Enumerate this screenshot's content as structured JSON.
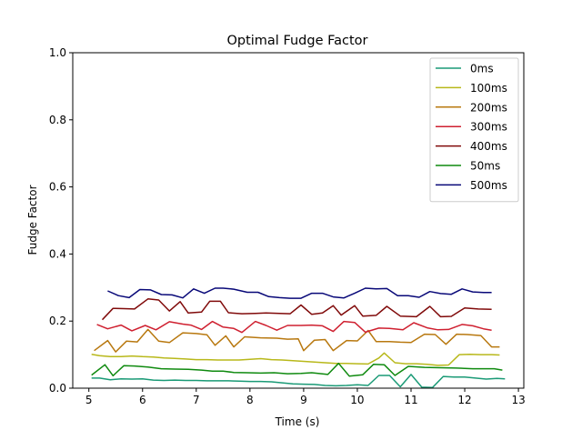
{
  "chart_data": {
    "type": "line",
    "title": "Optimal Fudge Factor",
    "xlabel": "Time (s)",
    "ylabel": "Fudge Factor",
    "xlim": [
      4.7,
      13.1
    ],
    "ylim": [
      0.0,
      1.0
    ],
    "xticks": [
      5,
      6,
      7,
      8,
      9,
      10,
      11,
      12,
      13
    ],
    "xtick_labels": [
      "5",
      "6",
      "7",
      "8",
      "9",
      "10",
      "11",
      "12",
      "13"
    ],
    "yticks": [
      0.0,
      0.2,
      0.4,
      0.6,
      0.8,
      1.0
    ],
    "ytick_labels": [
      "0.0",
      "0.2",
      "0.4",
      "0.6",
      "0.8",
      "1.0"
    ],
    "grid": false,
    "legend": "top-right",
    "series": [
      {
        "name": "0ms",
        "color": "#1a9a76",
        "x": [
          5.05,
          5.2,
          5.4,
          5.6,
          5.8,
          6.0,
          6.2,
          6.4,
          6.6,
          6.8,
          7.0,
          7.2,
          7.4,
          7.6,
          7.8,
          8.0,
          8.2,
          8.4,
          8.6,
          8.8,
          9.0,
          9.2,
          9.4,
          9.6,
          9.8,
          10.0,
          10.2,
          10.4,
          10.6,
          10.8,
          11.0,
          11.2,
          11.4,
          11.6,
          11.8,
          12.0,
          12.2,
          12.4,
          12.6,
          12.75
        ],
        "y": [
          0.03,
          0.03,
          0.025,
          0.028,
          0.027,
          0.028,
          0.024,
          0.023,
          0.024,
          0.023,
          0.023,
          0.022,
          0.022,
          0.022,
          0.021,
          0.02,
          0.02,
          0.019,
          0.016,
          0.013,
          0.012,
          0.011,
          0.008,
          0.007,
          0.008,
          0.01,
          0.008,
          0.038,
          0.038,
          0.004,
          0.041,
          0.003,
          0.002,
          0.035,
          0.033,
          0.033,
          0.03,
          0.027,
          0.029,
          0.028
        ]
      },
      {
        "name": "100ms",
        "color": "#b8b81a",
        "x": [
          5.05,
          5.2,
          5.4,
          5.6,
          5.8,
          6.0,
          6.2,
          6.4,
          6.6,
          6.8,
          7.0,
          7.2,
          7.4,
          7.6,
          7.8,
          8.0,
          8.2,
          8.4,
          8.6,
          8.8,
          9.0,
          9.2,
          9.4,
          9.6,
          9.8,
          10.0,
          10.2,
          10.4,
          10.5,
          10.7,
          10.9,
          11.1,
          11.3,
          11.5,
          11.7,
          11.9,
          12.1,
          12.3,
          12.5,
          12.65
        ],
        "y": [
          0.101,
          0.097,
          0.094,
          0.094,
          0.096,
          0.094,
          0.093,
          0.09,
          0.089,
          0.087,
          0.085,
          0.085,
          0.084,
          0.084,
          0.084,
          0.086,
          0.088,
          0.085,
          0.084,
          0.082,
          0.08,
          0.078,
          0.076,
          0.074,
          0.074,
          0.073,
          0.072,
          0.09,
          0.105,
          0.076,
          0.073,
          0.073,
          0.071,
          0.068,
          0.069,
          0.1,
          0.101,
          0.1,
          0.1,
          0.099
        ]
      },
      {
        "name": "200ms",
        "color": "#b8780f",
        "x": [
          5.1,
          5.35,
          5.5,
          5.7,
          5.9,
          6.1,
          6.3,
          6.5,
          6.75,
          7.0,
          7.2,
          7.35,
          7.55,
          7.7,
          7.9,
          8.2,
          8.5,
          8.7,
          8.9,
          9.0,
          9.2,
          9.4,
          9.55,
          9.8,
          10.0,
          10.2,
          10.35,
          10.6,
          10.8,
          11.0,
          11.25,
          11.45,
          11.65,
          11.85,
          12.05,
          12.3,
          12.5,
          12.65
        ],
        "y": [
          0.112,
          0.142,
          0.108,
          0.14,
          0.138,
          0.175,
          0.14,
          0.136,
          0.165,
          0.163,
          0.159,
          0.128,
          0.156,
          0.123,
          0.153,
          0.15,
          0.149,
          0.146,
          0.147,
          0.112,
          0.143,
          0.145,
          0.112,
          0.142,
          0.141,
          0.172,
          0.139,
          0.139,
          0.137,
          0.136,
          0.161,
          0.16,
          0.131,
          0.161,
          0.16,
          0.157,
          0.123,
          0.123
        ]
      },
      {
        "name": "300ms",
        "color": "#cf2030",
        "x": [
          5.15,
          5.35,
          5.6,
          5.8,
          6.05,
          6.25,
          6.5,
          6.75,
          6.9,
          7.1,
          7.3,
          7.5,
          7.7,
          7.85,
          8.1,
          8.3,
          8.5,
          8.7,
          8.95,
          9.15,
          9.35,
          9.55,
          9.75,
          9.95,
          10.15,
          10.4,
          10.6,
          10.85,
          11.05,
          11.3,
          11.5,
          11.7,
          11.95,
          12.15,
          12.35,
          12.5
        ],
        "y": [
          0.19,
          0.177,
          0.188,
          0.171,
          0.187,
          0.174,
          0.198,
          0.191,
          0.188,
          0.175,
          0.199,
          0.182,
          0.178,
          0.166,
          0.199,
          0.187,
          0.173,
          0.187,
          0.187,
          0.188,
          0.186,
          0.169,
          0.199,
          0.196,
          0.167,
          0.179,
          0.178,
          0.174,
          0.195,
          0.18,
          0.174,
          0.175,
          0.19,
          0.186,
          0.177,
          0.173
        ]
      },
      {
        "name": "400ms",
        "color": "#800a0a",
        "x": [
          5.25,
          5.45,
          5.65,
          5.85,
          6.1,
          6.3,
          6.5,
          6.7,
          6.85,
          7.1,
          7.25,
          7.45,
          7.6,
          7.85,
          8.1,
          8.3,
          8.55,
          8.75,
          8.95,
          9.15,
          9.35,
          9.55,
          9.7,
          9.95,
          10.1,
          10.35,
          10.55,
          10.8,
          11.1,
          11.35,
          11.55,
          11.75,
          12.0,
          12.25,
          12.5
        ],
        "y": [
          0.204,
          0.238,
          0.237,
          0.236,
          0.266,
          0.263,
          0.23,
          0.258,
          0.224,
          0.227,
          0.259,
          0.259,
          0.225,
          0.222,
          0.223,
          0.224,
          0.223,
          0.222,
          0.248,
          0.22,
          0.224,
          0.246,
          0.218,
          0.246,
          0.215,
          0.217,
          0.244,
          0.215,
          0.213,
          0.244,
          0.213,
          0.214,
          0.239,
          0.236,
          0.235
        ]
      },
      {
        "name": "50ms",
        "color": "#0f8a0f",
        "x": [
          5.05,
          5.3,
          5.45,
          5.65,
          5.85,
          6.1,
          6.35,
          6.6,
          6.85,
          7.1,
          7.3,
          7.5,
          7.7,
          7.95,
          8.2,
          8.45,
          8.7,
          8.95,
          9.15,
          9.45,
          9.65,
          9.85,
          10.1,
          10.3,
          10.5,
          10.7,
          10.95,
          11.25,
          11.55,
          11.85,
          12.15,
          12.35,
          12.55,
          12.7
        ],
        "y": [
          0.039,
          0.07,
          0.037,
          0.067,
          0.066,
          0.063,
          0.058,
          0.057,
          0.056,
          0.054,
          0.051,
          0.051,
          0.047,
          0.046,
          0.045,
          0.046,
          0.043,
          0.044,
          0.046,
          0.041,
          0.074,
          0.036,
          0.04,
          0.071,
          0.07,
          0.038,
          0.065,
          0.062,
          0.061,
          0.06,
          0.058,
          0.058,
          0.058,
          0.054
        ]
      },
      {
        "name": "500ms",
        "color": "#080878",
        "x": [
          5.35,
          5.55,
          5.75,
          5.95,
          6.15,
          6.35,
          6.55,
          6.75,
          6.95,
          7.15,
          7.35,
          7.5,
          7.7,
          7.95,
          8.15,
          8.35,
          8.55,
          8.75,
          8.95,
          9.15,
          9.35,
          9.55,
          9.75,
          9.95,
          10.15,
          10.35,
          10.55,
          10.75,
          10.95,
          11.15,
          11.35,
          11.55,
          11.75,
          11.95,
          12.15,
          12.35,
          12.5
        ],
        "y": [
          0.29,
          0.276,
          0.27,
          0.294,
          0.293,
          0.279,
          0.278,
          0.269,
          0.296,
          0.283,
          0.298,
          0.298,
          0.295,
          0.286,
          0.286,
          0.273,
          0.27,
          0.268,
          0.268,
          0.283,
          0.283,
          0.272,
          0.269,
          0.283,
          0.298,
          0.296,
          0.297,
          0.276,
          0.276,
          0.271,
          0.288,
          0.282,
          0.28,
          0.296,
          0.287,
          0.285,
          0.285
        ]
      }
    ]
  }
}
